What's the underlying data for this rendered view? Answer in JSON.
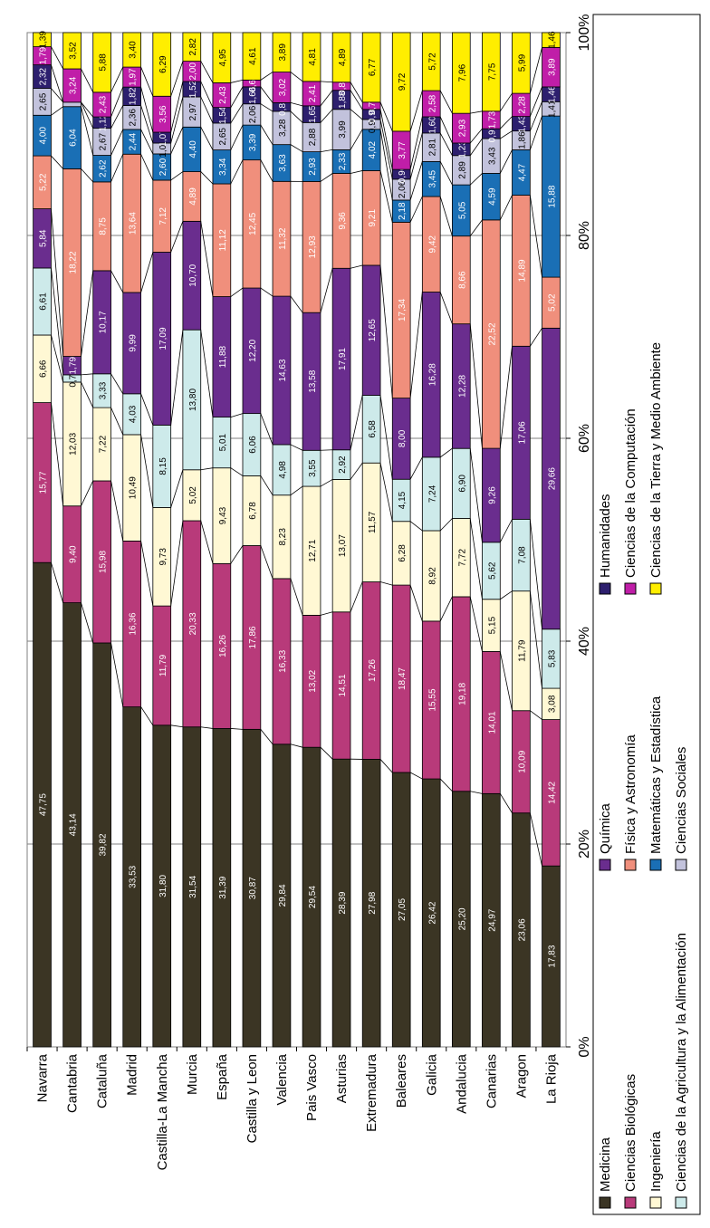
{
  "chart_data": {
    "type": "bar",
    "stacked": "percent",
    "orientation": "horizontal",
    "categories": [
      "Navarra",
      "Cantabria",
      "Cataluña",
      "Madrid",
      "Castilla-La Mancha",
      "Murcia",
      "España",
      "Castilla y Leon",
      "Valencia",
      "Pais Vasco",
      "Asturias",
      "Extremadura",
      "Baleares",
      "Galicia",
      "Andalucia",
      "Canarias",
      "Aragon",
      "La Rioja"
    ],
    "x_ticks": [
      "0%",
      "20%",
      "40%",
      "60%",
      "80%",
      "100%"
    ],
    "xlim": [
      0,
      100
    ],
    "grid": true,
    "legend_position": "bottom",
    "series": [
      {
        "name": "Medicina",
        "color": "#3b3524",
        "values": [
          47.75,
          43.14,
          39.82,
          33.53,
          31.8,
          31.54,
          31.39,
          30.87,
          29.84,
          29.54,
          28.39,
          27.98,
          27.05,
          26.42,
          25.2,
          24.97,
          23.06,
          17.83
        ]
      },
      {
        "name": "Ciencias Biológicas",
        "color": "#b83a7a",
        "values": [
          15.77,
          9.4,
          15.98,
          16.36,
          11.79,
          20.33,
          16.26,
          17.86,
          16.33,
          13.02,
          14.51,
          17.26,
          18.47,
          15.55,
          19.18,
          14.01,
          10.09,
          14.42
        ]
      },
      {
        "name": "Ingeniería",
        "color": "#fff8d4",
        "values": [
          6.66,
          12.03,
          7.22,
          10.49,
          9.73,
          5.02,
          9.43,
          6.78,
          8.23,
          12.71,
          13.07,
          11.57,
          6.28,
          8.92,
          7.72,
          5.15,
          11.79,
          3.08
        ]
      },
      {
        "name": "Ciencias de la Agricultura y la Alimentación",
        "color": "#cdeaea",
        "values": [
          6.61,
          0.71,
          3.33,
          4.03,
          8.15,
          13.8,
          5.01,
          6.06,
          4.98,
          3.55,
          2.92,
          6.58,
          4.15,
          7.24,
          6.9,
          5.62,
          7.08,
          5.83
        ]
      },
      {
        "name": "Química",
        "color": "#6a2d8e",
        "values": [
          5.84,
          1.79,
          10.17,
          9.99,
          17.09,
          10.7,
          11.88,
          12.2,
          14.63,
          13.58,
          17.91,
          12.65,
          8.0,
          16.28,
          12.28,
          9.26,
          17.06,
          29.66
        ]
      },
      {
        "name": "Física y Astronomía",
        "color": "#f08f7c",
        "values": [
          5.22,
          18.22,
          8.75,
          13.64,
          7.12,
          4.89,
          11.12,
          12.45,
          11.32,
          12.93,
          9.36,
          9.21,
          17.34,
          9.42,
          8.66,
          22.52,
          14.89,
          5.02
        ]
      },
      {
        "name": "Matemáticas y Estadística",
        "color": "#1a6fb5",
        "values": [
          4.0,
          6.04,
          2.62,
          2.44,
          2.6,
          4.4,
          3.34,
          3.39,
          3.63,
          2.93,
          2.33,
          4.02,
          2.18,
          3.45,
          5.05,
          4.59,
          4.47,
          15.88
        ]
      },
      {
        "name": "Ciencias Sociales",
        "color": "#c2c2dc",
        "values": [
          2.65,
          0.43,
          2.67,
          2.36,
          1.07,
          2.97,
          2.65,
          2.06,
          3.28,
          2.88,
          3.99,
          0.96,
          2.06,
          2.81,
          2.89,
          3.43,
          1.86,
          1.41
        ]
      },
      {
        "name": "Humanidades",
        "color": "#2d1f6e",
        "values": [
          2.32,
          0.0,
          1.12,
          1.82,
          1.07,
          1.52,
          1.54,
          1.66,
          0.85,
          1.65,
          1.88,
          0.98,
          0.96,
          1.6,
          1.23,
          0.97,
          1.43,
          1.46
        ]
      },
      {
        "name": "Ciencias de la Computación",
        "color": "#c01ea8",
        "values": [
          1.79,
          3.24,
          2.43,
          1.97,
          3.56,
          2.0,
          2.43,
          0.66,
          3.02,
          2.41,
          0.8,
          0.7,
          3.77,
          2.58,
          2.93,
          1.73,
          2.28,
          3.89
        ]
      },
      {
        "name": "Ciencias de la Tierra y Medio Ambiente",
        "color": "#ffee00",
        "values": [
          1.39,
          3.52,
          5.88,
          3.4,
          6.29,
          2.82,
          4.95,
          4.61,
          3.89,
          4.81,
          4.89,
          6.77,
          9.72,
          5.72,
          7.96,
          7.75,
          5.99,
          1.46
        ]
      }
    ]
  }
}
